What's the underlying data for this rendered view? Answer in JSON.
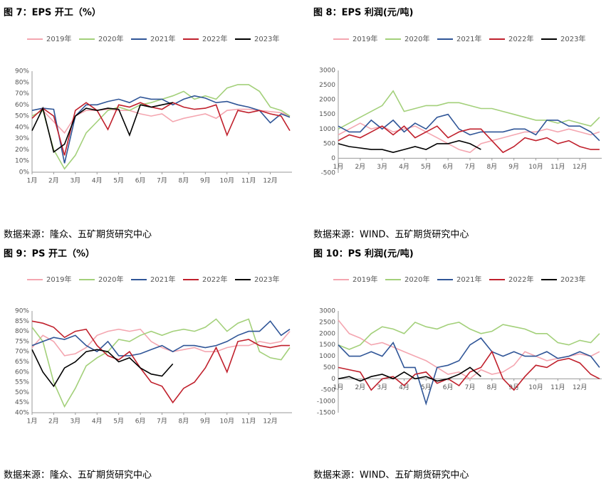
{
  "chart_data": [
    {
      "type": "line",
      "title": "图 7：EPS 开工（%）",
      "source": "数据来源：隆众、五矿期货研究中心",
      "x": [
        1,
        1.5,
        2,
        2.5,
        3,
        3.5,
        4,
        4.5,
        5,
        5.5,
        6,
        6.5,
        7,
        7.5,
        8,
        8.5,
        9,
        9.5,
        10,
        10.5,
        11,
        11.5,
        12,
        12.5,
        12.9
      ],
      "xlim": [
        1,
        13
      ],
      "xticks": [
        {
          "value": 1,
          "label": "1月"
        },
        {
          "value": 2,
          "label": "2月"
        },
        {
          "value": 3,
          "label": "3月"
        },
        {
          "value": 4,
          "label": "4月"
        },
        {
          "value": 5,
          "label": "5月"
        },
        {
          "value": 6,
          "label": "6月"
        },
        {
          "value": 7,
          "label": "7月"
        },
        {
          "value": 8,
          "label": "8月"
        },
        {
          "value": 9,
          "label": "9月"
        },
        {
          "value": 10,
          "label": "10月"
        },
        {
          "value": 11,
          "label": "11月"
        },
        {
          "value": 12,
          "label": "12月"
        }
      ],
      "ylim": [
        0,
        90
      ],
      "yticks": [
        {
          "value": 0,
          "label": "0%"
        },
        {
          "value": 10,
          "label": "10%"
        },
        {
          "value": 20,
          "label": "20%"
        },
        {
          "value": 30,
          "label": "30%"
        },
        {
          "value": 40,
          "label": "40%"
        },
        {
          "value": 50,
          "label": "50%"
        },
        {
          "value": 60,
          "label": "60%"
        },
        {
          "value": 70,
          "label": "70%"
        },
        {
          "value": 80,
          "label": "80%"
        },
        {
          "value": 90,
          "label": "90%"
        }
      ],
      "series": [
        {
          "name": "2019年",
          "color": "#f4a6b0",
          "values": [
            50,
            55,
            45,
            35,
            50,
            55,
            55,
            56,
            55,
            55,
            52,
            50,
            52,
            45,
            48,
            50,
            52,
            48,
            55,
            56,
            56,
            55,
            54,
            53,
            50
          ]
        },
        {
          "name": "2020年",
          "color": "#a3d07a",
          "values": [
            50,
            55,
            20,
            3,
            15,
            35,
            45,
            55,
            58,
            55,
            60,
            62,
            65,
            68,
            72,
            65,
            68,
            65,
            75,
            78,
            78,
            72,
            58,
            55,
            50
          ]
        },
        {
          "name": "2021年",
          "color": "#2f5597",
          "values": [
            55,
            57,
            56,
            8,
            50,
            60,
            60,
            63,
            65,
            62,
            67,
            65,
            65,
            60,
            65,
            68,
            66,
            62,
            63,
            60,
            58,
            55,
            44,
            52,
            49
          ]
        },
        {
          "name": "2022年",
          "color": "#c0202c",
          "values": [
            48,
            57,
            50,
            15,
            55,
            62,
            55,
            38,
            60,
            58,
            62,
            58,
            56,
            62,
            58,
            56,
            57,
            60,
            33,
            55,
            53,
            55,
            52,
            50,
            37
          ]
        },
        {
          "name": "2023年",
          "color": "#000000",
          "values": [
            37,
            57,
            18,
            25,
            50,
            57,
            55,
            57,
            56,
            33,
            60,
            58,
            60,
            62,
            null,
            null,
            null,
            null,
            null,
            null,
            null,
            null,
            null,
            null,
            null
          ]
        }
      ]
    },
    {
      "type": "line",
      "title": "图 8：EPS 利润(元/吨)",
      "source": "数据来源：WIND、五矿期货研究中心",
      "x": [
        1,
        1.5,
        2,
        2.5,
        3,
        3.5,
        4,
        4.5,
        5,
        5.5,
        6,
        6.5,
        7,
        7.5,
        8,
        8.5,
        9,
        9.5,
        10,
        10.5,
        11,
        11.5,
        12,
        12.5,
        12.9
      ],
      "xlim": [
        1,
        13
      ],
      "xticks": [
        {
          "value": 1,
          "label": "1月"
        },
        {
          "value": 2,
          "label": "2月"
        },
        {
          "value": 3,
          "label": "3月"
        },
        {
          "value": 4,
          "label": "4月"
        },
        {
          "value": 5,
          "label": "5月"
        },
        {
          "value": 6,
          "label": "6月"
        },
        {
          "value": 7,
          "label": "7月"
        },
        {
          "value": 8,
          "label": "8月"
        },
        {
          "value": 9,
          "label": "9月"
        },
        {
          "value": 10,
          "label": "10月"
        },
        {
          "value": 11,
          "label": "11月"
        },
        {
          "value": 12,
          "label": "12月"
        }
      ],
      "ylim": [
        -500,
        3000
      ],
      "yticks": [
        -500,
        0,
        500,
        1000,
        1500,
        2000,
        2500,
        3000
      ],
      "series": [
        {
          "name": "2019年",
          "color": "#f4a6b0",
          "values": [
            800,
            1000,
            1200,
            1000,
            1100,
            900,
            1000,
            1100,
            900,
            700,
            500,
            300,
            200,
            500,
            600,
            700,
            800,
            900,
            900,
            1000,
            900,
            1000,
            900,
            800,
            900
          ]
        },
        {
          "name": "2020年",
          "color": "#a3d07a",
          "values": [
            1000,
            1200,
            1400,
            1600,
            1800,
            2300,
            1600,
            1700,
            1800,
            1800,
            1900,
            1900,
            1800,
            1700,
            1700,
            1600,
            1500,
            1400,
            1300,
            1300,
            1200,
            1300,
            1200,
            1100,
            1400
          ]
        },
        {
          "name": "2021年",
          "color": "#2f5597",
          "values": [
            1100,
            900,
            900,
            1300,
            1000,
            1300,
            900,
            1200,
            1000,
            1400,
            1500,
            1000,
            800,
            900,
            900,
            900,
            1000,
            1000,
            800,
            1300,
            1300,
            1100,
            1100,
            900,
            600
          ]
        },
        {
          "name": "2022年",
          "color": "#c0202c",
          "values": [
            600,
            800,
            700,
            900,
            1100,
            800,
            1100,
            700,
            900,
            1100,
            700,
            900,
            1000,
            1000,
            600,
            200,
            400,
            700,
            600,
            700,
            500,
            600,
            400,
            300,
            300
          ]
        },
        {
          "name": "2023年",
          "color": "#000000",
          "values": [
            500,
            400,
            350,
            300,
            300,
            200,
            300,
            400,
            300,
            500,
            500,
            600,
            500,
            300,
            null,
            null,
            null,
            null,
            null,
            null,
            null,
            null,
            null,
            null,
            null
          ]
        }
      ]
    },
    {
      "type": "line",
      "title": "图 9：PS 开工（%）",
      "source": "数据来源：隆众、五矿期货研究中心",
      "x": [
        1,
        1.5,
        2,
        2.5,
        3,
        3.5,
        4,
        4.5,
        5,
        5.5,
        6,
        6.5,
        7,
        7.5,
        8,
        8.5,
        9,
        9.5,
        10,
        10.5,
        11,
        11.5,
        12,
        12.5,
        12.9
      ],
      "xlim": [
        1,
        13
      ],
      "xticks": [
        {
          "value": 1,
          "label": "1月"
        },
        {
          "value": 2,
          "label": "2月"
        },
        {
          "value": 3,
          "label": "3月"
        },
        {
          "value": 4,
          "label": "4月"
        },
        {
          "value": 5,
          "label": "5月"
        },
        {
          "value": 6,
          "label": "6月"
        },
        {
          "value": 7,
          "label": "7月"
        },
        {
          "value": 8,
          "label": "8月"
        },
        {
          "value": 9,
          "label": "9月"
        },
        {
          "value": 10,
          "label": "10月"
        },
        {
          "value": 11,
          "label": "11月"
        },
        {
          "value": 12,
          "label": "12月"
        }
      ],
      "ylim": [
        40,
        90
      ],
      "yticks": [
        {
          "value": 40,
          "label": "40%"
        },
        {
          "value": 45,
          "label": "45%"
        },
        {
          "value": 50,
          "label": "50%"
        },
        {
          "value": 55,
          "label": "55%"
        },
        {
          "value": 60,
          "label": "60%"
        },
        {
          "value": 65,
          "label": "65%"
        },
        {
          "value": 70,
          "label": "70%"
        },
        {
          "value": 75,
          "label": "75%"
        },
        {
          "value": 80,
          "label": "80%"
        },
        {
          "value": 85,
          "label": "85%"
        },
        {
          "value": 90,
          "label": "90%"
        }
      ],
      "series": [
        {
          "name": "2019年",
          "color": "#f4a6b0",
          "values": [
            72,
            78,
            75,
            68,
            69,
            72,
            78,
            80,
            81,
            80,
            81,
            75,
            72,
            70,
            71,
            72,
            70,
            70,
            72,
            73,
            73,
            75,
            74,
            75,
            80
          ]
        },
        {
          "name": "2020年",
          "color": "#a3d07a",
          "values": [
            82,
            75,
            55,
            43,
            52,
            63,
            67,
            70,
            76,
            75,
            78,
            80,
            78,
            80,
            81,
            80,
            82,
            86,
            80,
            84,
            86,
            70,
            67,
            66,
            72
          ]
        },
        {
          "name": "2021年",
          "color": "#2f5597",
          "values": [
            73,
            75,
            77,
            76,
            78,
            73,
            70,
            75,
            68,
            68,
            69,
            71,
            73,
            70,
            73,
            73,
            72,
            73,
            75,
            78,
            80,
            80,
            85,
            78,
            81
          ]
        },
        {
          "name": "2022年",
          "color": "#c0202c",
          "values": [
            85,
            84,
            82,
            77,
            80,
            81,
            73,
            68,
            66,
            70,
            62,
            55,
            53,
            45,
            52,
            55,
            62,
            72,
            60,
            75,
            76,
            73,
            72,
            73,
            73
          ]
        },
        {
          "name": "2023年",
          "color": "#000000",
          "values": [
            71,
            60,
            53,
            62,
            65,
            70,
            71,
            70,
            65,
            67,
            62,
            59,
            58,
            64,
            null,
            null,
            null,
            null,
            null,
            null,
            null,
            null,
            null,
            null,
            null
          ]
        }
      ]
    },
    {
      "type": "line",
      "title": "图 10：PS 利润(元/吨)",
      "source": "数据来源：WIND、五矿期货研究中心",
      "x": [
        1,
        1.5,
        2,
        2.5,
        3,
        3.5,
        4,
        4.5,
        5,
        5.5,
        6,
        6.5,
        7,
        7.5,
        8,
        8.5,
        9,
        9.5,
        10,
        10.5,
        11,
        11.5,
        12,
        12.5,
        12.9
      ],
      "xlim": [
        1,
        13
      ],
      "xticks": [
        {
          "value": 1,
          "label": "1月"
        },
        {
          "value": 2,
          "label": "2月"
        },
        {
          "value": 3,
          "label": "3月"
        },
        {
          "value": 4,
          "label": "4月"
        },
        {
          "value": 5,
          "label": "5月"
        },
        {
          "value": 6,
          "label": "6月"
        },
        {
          "value": 7,
          "label": "7月"
        },
        {
          "value": 8,
          "label": "8月"
        },
        {
          "value": 9,
          "label": "9月"
        },
        {
          "value": 10,
          "label": "10月"
        },
        {
          "value": 11,
          "label": "11月"
        },
        {
          "value": 12,
          "label": "12月"
        }
      ],
      "ylim": [
        -1500,
        3000
      ],
      "yticks": [
        -1500,
        -1000,
        -500,
        0,
        500,
        1000,
        1500,
        2000,
        2500,
        3000
      ],
      "series": [
        {
          "name": "2019年",
          "color": "#f4a6b0",
          "values": [
            2600,
            2000,
            1800,
            1500,
            1600,
            1400,
            1200,
            1000,
            800,
            500,
            200,
            300,
            0,
            400,
            200,
            300,
            600,
            1200,
            1000,
            800,
            900,
            1000,
            1100,
            1000,
            1200
          ]
        },
        {
          "name": "2020年",
          "color": "#a3d07a",
          "values": [
            1500,
            1300,
            1500,
            2000,
            2300,
            2200,
            2000,
            2500,
            2300,
            2200,
            2400,
            2500,
            2200,
            2000,
            2100,
            2400,
            2300,
            2200,
            2000,
            2000,
            1600,
            1500,
            1700,
            1600,
            2000
          ]
        },
        {
          "name": "2021年",
          "color": "#2f5597",
          "values": [
            1500,
            1000,
            1000,
            1200,
            1000,
            1600,
            500,
            500,
            -1100,
            500,
            600,
            800,
            1500,
            1800,
            1200,
            1000,
            1200,
            1000,
            1000,
            1200,
            900,
            1000,
            1200,
            1000,
            500
          ]
        },
        {
          "name": "2022年",
          "color": "#c0202c",
          "values": [
            500,
            400,
            300,
            -500,
            0,
            100,
            -300,
            200,
            300,
            -200,
            0,
            -300,
            300,
            500,
            1200,
            0,
            -500,
            100,
            600,
            500,
            800,
            900,
            700,
            200,
            0
          ]
        },
        {
          "name": "2023年",
          "color": "#000000",
          "values": [
            0,
            100,
            -100,
            100,
            200,
            0,
            300,
            0,
            100,
            -100,
            0,
            200,
            500,
            100,
            null,
            null,
            null,
            null,
            null,
            null,
            null,
            null,
            null,
            null,
            null
          ]
        }
      ]
    }
  ]
}
